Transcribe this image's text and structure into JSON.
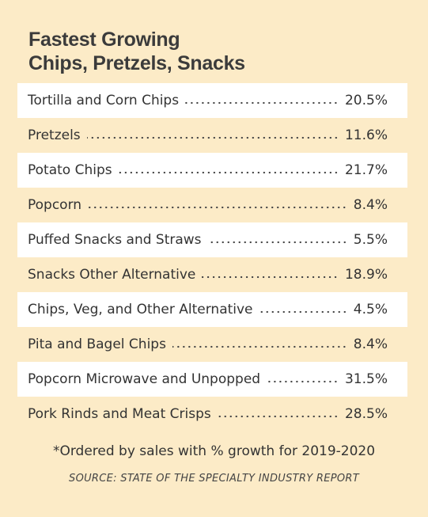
{
  "header": {
    "title": [
      "Fastest Growing",
      "Chips, Pretzels, Snacks"
    ]
  },
  "table": {
    "rows": [
      [
        "Tortilla and Corn Chips",
        "20.5%"
      ],
      [
        "Pretzels",
        "11.6%"
      ],
      [
        "Potato Chips",
        "21.7%"
      ],
      [
        "Popcorn",
        "8.4%"
      ],
      [
        "Puffed Snacks and Straws",
        "5.5%"
      ],
      [
        "Snacks Other Alternative",
        "18.9%"
      ],
      [
        "Chips, Veg, and Other Alternative",
        "4.5%"
      ],
      [
        "Pita and Bagel Chips",
        "8.4%"
      ],
      [
        "Popcorn Microwave and Unpopped",
        "31.5%"
      ],
      [
        "Pork Rinds and Meat Crisps",
        "28.5%"
      ]
    ]
  },
  "footer": {
    "note": "*Ordered by sales with % growth for 2019-2020",
    "source": "SOURCE: STATE OF THE SPECIALTY INDUSTRY REPORT"
  }
}
